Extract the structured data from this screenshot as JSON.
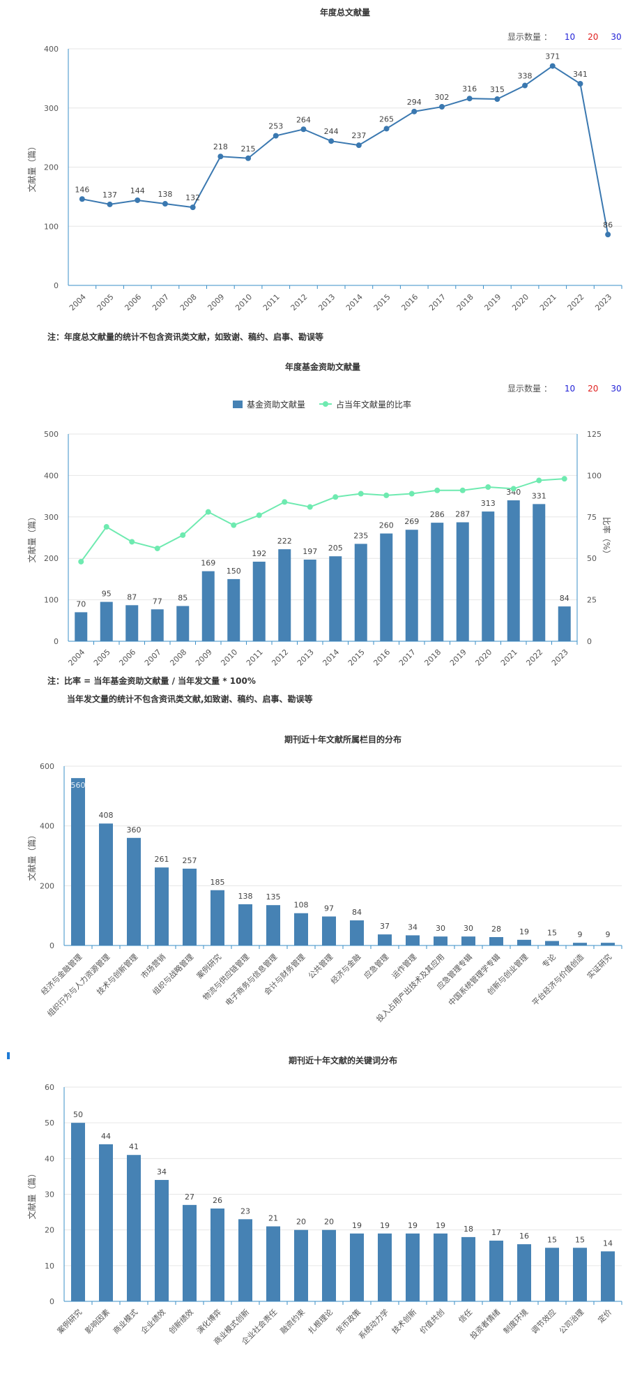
{
  "display_count": {
    "label": "显示数量 ：",
    "options": [
      "10",
      "20",
      "30"
    ],
    "colors": [
      "#1f1fd6",
      "#e0201f",
      "#1f1fd6"
    ]
  },
  "notes": {
    "chart1": "注：年度总文献量的统计不包含资讯类文献，如致谢、稿约、启事、勘误等",
    "chart2_line1": "注：比率 = 当年基金资助文献量 / 当年发文量 * 100%",
    "chart2_line2": "当年发文量的统计不包含资讯类文献,如致谢、稿约、启事、勘误等"
  },
  "colors": {
    "bar": "#4682b4",
    "line": "#3a78b0",
    "ratio": "#6eeab0",
    "axis": "#3a8fc7",
    "grid": "#e6e6e6"
  },
  "chart_data": [
    {
      "type": "line",
      "title": "年度总文献量",
      "ylabel": "文献量（篇）",
      "xlabel": "",
      "ylim": [
        0,
        400
      ],
      "yticks": [
        0,
        100,
        200,
        300,
        400
      ],
      "categories": [
        "2004",
        "2005",
        "2006",
        "2007",
        "2008",
        "2009",
        "2010",
        "2011",
        "2012",
        "2013",
        "2014",
        "2015",
        "2016",
        "2017",
        "2018",
        "2019",
        "2020",
        "2021",
        "2022",
        "2023"
      ],
      "values": [
        146,
        137,
        144,
        138,
        132,
        218,
        215,
        253,
        264,
        244,
        237,
        265,
        294,
        302,
        316,
        315,
        338,
        371,
        341,
        86
      ]
    },
    {
      "type": "bar",
      "title": "年度基金资助文献量",
      "ylabel": "文献量（篇）",
      "y2label": "比率（%）",
      "ylim": [
        0,
        500
      ],
      "yticks": [
        0,
        100,
        200,
        300,
        400,
        500
      ],
      "y2lim": [
        0,
        125
      ],
      "y2ticks": [
        0,
        25,
        50,
        75,
        100,
        125
      ],
      "legend": [
        "基金资助文献量",
        "占当年文献量的比率"
      ],
      "categories": [
        "2004",
        "2005",
        "2006",
        "2007",
        "2008",
        "2009",
        "2010",
        "2011",
        "2012",
        "2013",
        "2014",
        "2015",
        "2016",
        "2017",
        "2018",
        "2019",
        "2020",
        "2021",
        "2022",
        "2023"
      ],
      "series": [
        {
          "name": "基金资助文献量",
          "values": [
            70,
            95,
            87,
            77,
            85,
            169,
            150,
            192,
            222,
            197,
            205,
            235,
            260,
            269,
            286,
            287,
            313,
            340,
            331,
            84
          ]
        },
        {
          "name": "占当年文献量的比率",
          "values": [
            48,
            69,
            60,
            56,
            64,
            78,
            70,
            76,
            84,
            81,
            87,
            89,
            88,
            89,
            91,
            91,
            93,
            92,
            97,
            98
          ]
        }
      ]
    },
    {
      "type": "bar",
      "title": "期刊近十年文献所属栏目的分布",
      "ylabel": "文献量（篇）",
      "ylim": [
        0,
        600
      ],
      "yticks": [
        0,
        200,
        400,
        600
      ],
      "categories": [
        "经济与金融管理",
        "组织行为与人力资源管理",
        "技术与创新管理",
        "市场营销",
        "组织与战略管理",
        "案例研究",
        "物流与供应链管理",
        "电子商务与信息管理",
        "会计与财务管理",
        "公共管理",
        "经济与金融",
        "应急管理",
        "运作管理",
        "投入占用产出技术及其应用",
        "应急管理专辑",
        "中国系统管理学专辑",
        "创新与创业管理",
        "专论",
        "平台经济与价值创造",
        "实证研究"
      ],
      "values": [
        560,
        408,
        360,
        261,
        257,
        185,
        138,
        135,
        108,
        97,
        84,
        37,
        34,
        30,
        30,
        28,
        19,
        15,
        9,
        9
      ]
    },
    {
      "type": "bar",
      "title": "期刊近十年文献的关键词分布",
      "ylabel": "文献量（篇）",
      "ylim": [
        0,
        60
      ],
      "yticks": [
        0,
        10,
        20,
        30,
        40,
        50,
        60
      ],
      "categories": [
        "案例研究",
        "影响因素",
        "商业模式",
        "企业绩效",
        "创新绩效",
        "演化博弈",
        "商业模式创新",
        "企业社会责任",
        "融资约束",
        "扎根理论",
        "货币政策",
        "系统动力学",
        "技术创新",
        "价值共创",
        "信任",
        "投资者情绪",
        "制度环境",
        "调节效应",
        "公司治理",
        "定价"
      ],
      "values": [
        50,
        44,
        41,
        34,
        27,
        26,
        23,
        21,
        20,
        20,
        19,
        19,
        19,
        19,
        18,
        17,
        16,
        15,
        15,
        14
      ]
    }
  ]
}
